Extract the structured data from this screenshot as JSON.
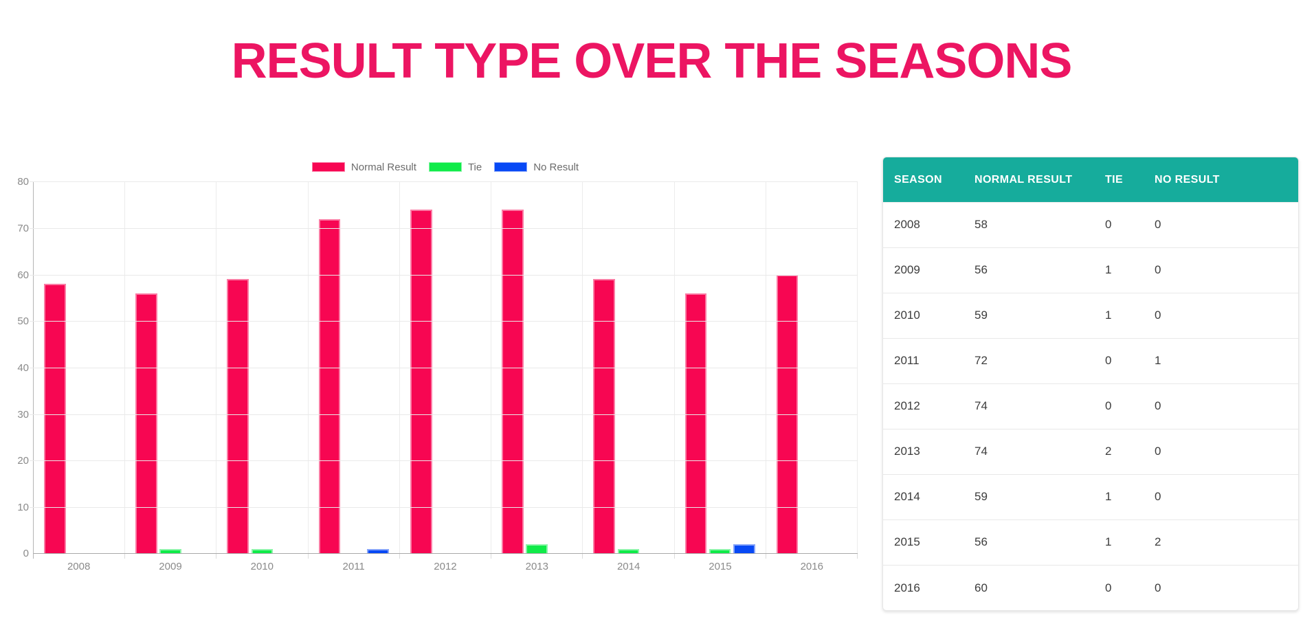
{
  "title": "RESULT TYPE OVER THE SEASONS",
  "theme": {
    "title_color": "#EC1562",
    "axis_line_color": "#B5B5B5",
    "grid_color": "#E9E9E9",
    "tick_label_color": "#8A8A8A",
    "legend_label_color": "#6B6B6B",
    "table_header_bg": "#16AC9C",
    "table_header_text": "#FFFFFF",
    "table_cell_text": "#3C3C3C",
    "table_divider": "#E8E8E8"
  },
  "chart_data": {
    "type": "bar",
    "title": "",
    "categories": [
      "2008",
      "2009",
      "2010",
      "2011",
      "2012",
      "2013",
      "2014",
      "2015",
      "2016"
    ],
    "series": [
      {
        "name": "Normal Result",
        "color": "#F70652",
        "border_color": "#FB7BA4",
        "values": [
          58,
          56,
          59,
          72,
          74,
          74,
          59,
          56,
          60
        ]
      },
      {
        "name": "Tie",
        "color": "#10EB49",
        "border_color": "#8BF5A8",
        "values": [
          0,
          1,
          1,
          0,
          0,
          2,
          1,
          1,
          0
        ]
      },
      {
        "name": "No Result",
        "color": "#0849F5",
        "border_color": "#85A3FA",
        "values": [
          0,
          0,
          0,
          1,
          0,
          0,
          0,
          2,
          0
        ]
      }
    ],
    "xlabel": "",
    "ylabel": "",
    "ylim": [
      0,
      80
    ],
    "yticks": [
      0,
      10,
      20,
      30,
      40,
      50,
      60,
      70,
      80
    ],
    "grid": true,
    "legend_position": "top-center"
  },
  "table": {
    "headers": [
      "SEASON",
      "NORMAL RESULT",
      "TIE",
      "NO RESULT"
    ],
    "rows": [
      [
        "2008",
        "58",
        "0",
        "0"
      ],
      [
        "2009",
        "56",
        "1",
        "0"
      ],
      [
        "2010",
        "59",
        "1",
        "0"
      ],
      [
        "2011",
        "72",
        "0",
        "1"
      ],
      [
        "2012",
        "74",
        "0",
        "0"
      ],
      [
        "2013",
        "74",
        "2",
        "0"
      ],
      [
        "2014",
        "59",
        "1",
        "0"
      ],
      [
        "2015",
        "56",
        "1",
        "2"
      ],
      [
        "2016",
        "60",
        "0",
        "0"
      ]
    ]
  }
}
